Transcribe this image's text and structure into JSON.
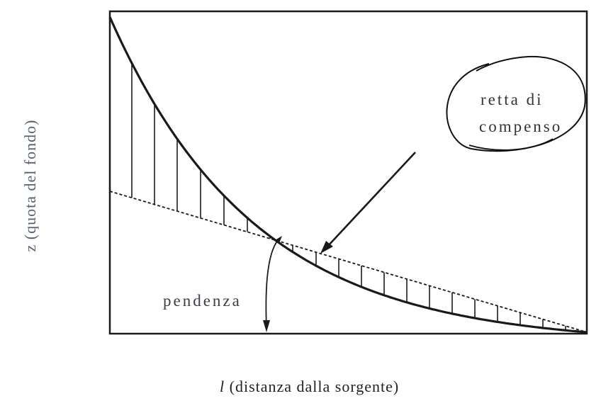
{
  "labels": {
    "y_axis": "z (quota del fondo)",
    "x_axis_italic": "l",
    "x_axis_rest": " (distanza dalla sorgente)",
    "annotation_line1": "retta di",
    "annotation_line2": "compenso",
    "slope": "pendenza"
  },
  "colors": {
    "stroke": "#1a1a1a",
    "y_label": "#556070"
  }
}
